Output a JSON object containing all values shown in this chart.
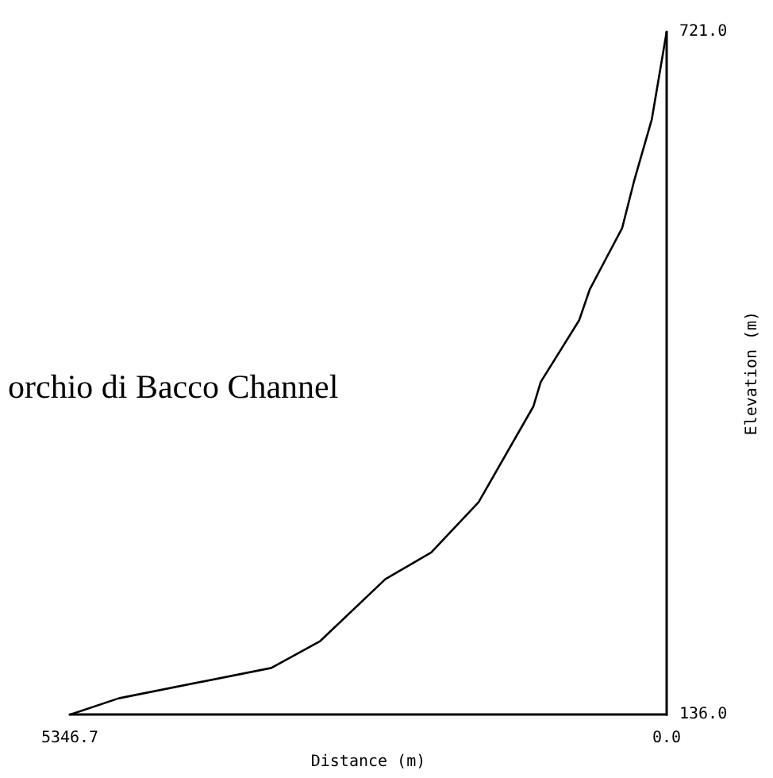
{
  "chart_data": {
    "type": "line",
    "title": "orchio di Bacco Channel",
    "xlabel": "Distance (m)",
    "ylabel": "Elevation (m)",
    "x": [
      5346.7,
      4909,
      3542,
      3104,
      2521,
      2109,
      1685,
      1194,
      1128,
      783,
      690,
      398,
      292,
      133,
      0
    ],
    "series": [
      {
        "color": "#000000",
        "values": [
          136,
          150,
          176,
          199,
          252,
          275,
          318,
          400,
          421,
          474,
          500,
          553,
          593,
          646,
          721
        ]
      }
    ],
    "xlim": [
      5346.7,
      0
    ],
    "ylim": [
      136,
      721
    ],
    "xticks": [
      {
        "value": 5346.7,
        "label": "5346.7"
      },
      {
        "value": 0,
        "label": "0.0"
      }
    ],
    "yticks": [
      {
        "value": 136,
        "label": "136.0"
      },
      {
        "value": 721,
        "label": "721.0"
      }
    ],
    "marker": "none",
    "line_style": "solid",
    "grid": false
  }
}
